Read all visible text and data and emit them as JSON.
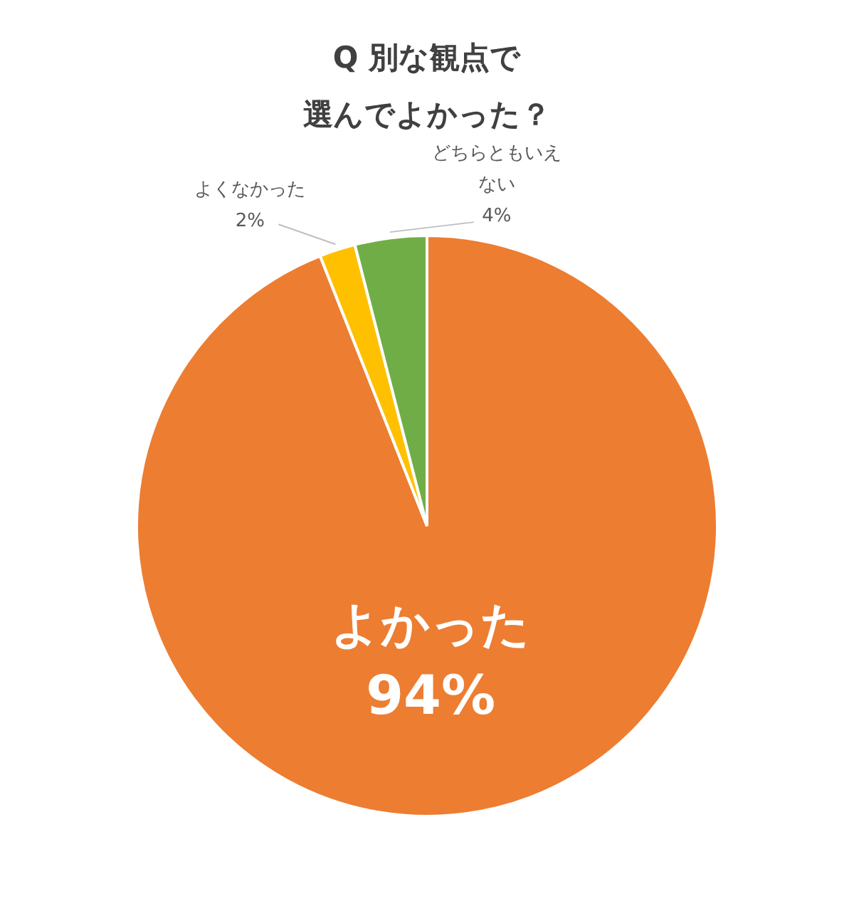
{
  "chart_data": {
    "type": "pie",
    "title": "Q 別な観点で",
    "subtitle": "選んでよかった？",
    "categories": [
      "よかった",
      "よくなかった",
      "どちらともいえない"
    ],
    "values": [
      94,
      2,
      4
    ],
    "colors": [
      "#ed7d31",
      "#ffc000",
      "#70ad47"
    ],
    "value_labels": [
      "94%",
      "2%",
      "4%"
    ],
    "legend": false
  }
}
